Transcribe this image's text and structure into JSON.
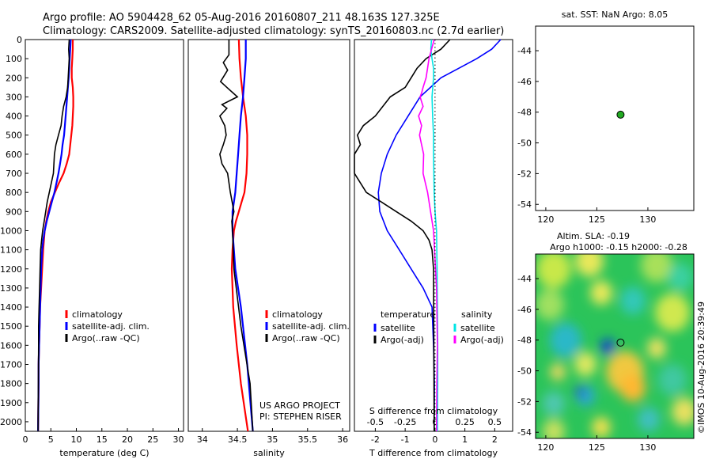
{
  "header": {
    "line1": "Argo profile: AO 5904428_62 05-Aug-2016 20160807_211 48.163S 127.325E",
    "line2": "Climatology: CARS2009. Satellite-adjusted climatology: synTS_20160803.nc (2.7d earlier)"
  },
  "colors": {
    "climatology": "#ff0000",
    "satellite": "#0000ff",
    "argo": "#000000",
    "salinity_sat": "#00e5e5",
    "salinity_argo": "#ff00ff",
    "float_marker": "#22aa22"
  },
  "chart_data": [
    {
      "type": "line",
      "panel": "temperature",
      "xlabel": "temperature (deg C)",
      "ylabel": "",
      "xlim": [
        0,
        31
      ],
      "ylim": [
        2050,
        0
      ],
      "xticks": [
        "0",
        "5",
        "10",
        "15",
        "20",
        "25",
        "30"
      ],
      "yticks": [
        "0",
        "100",
        "200",
        "300",
        "400",
        "500",
        "600",
        "700",
        "800",
        "900",
        "1000",
        "1100",
        "1200",
        "1300",
        "1400",
        "1500",
        "1600",
        "1700",
        "1800",
        "1900",
        "2000"
      ],
      "legend": [
        "climatology",
        "satellite-adj. clim.",
        "Argo(..raw -QC)"
      ],
      "legend_placement": "center",
      "series": [
        {
          "name": "climatology",
          "color": "red",
          "x": [
            9.3,
            9.3,
            9.2,
            9.1,
            9.1,
            9.3,
            9.4,
            9.4,
            9.3,
            9.2,
            9.0,
            8.8,
            8.6,
            8.1,
            7.5,
            6.6,
            5.8,
            5.0,
            4.5,
            4.1,
            3.8,
            3.5,
            3.3,
            3.1,
            2.9,
            2.8,
            2.7,
            2.6,
            2.6,
            2.5
          ],
          "y": [
            0,
            50,
            100,
            150,
            200,
            250,
            300,
            350,
            400,
            450,
            500,
            550,
            600,
            650,
            700,
            750,
            800,
            850,
            900,
            950,
            1000,
            1100,
            1200,
            1300,
            1400,
            1500,
            1600,
            1700,
            1800,
            2050
          ]
        },
        {
          "name": "satellite-adj. clim.",
          "color": "blue",
          "x": [
            8.9,
            8.8,
            8.7,
            8.6,
            8.5,
            8.2,
            7.9,
            7.6,
            7.3,
            7.1,
            6.8,
            6.5,
            6.1,
            5.7,
            5.2,
            4.7,
            4.2,
            3.8,
            3.5,
            3.3,
            3.1,
            3.0,
            2.9,
            2.8,
            2.7,
            2.6,
            2.6,
            2.5
          ],
          "y": [
            0,
            50,
            100,
            150,
            200,
            300,
            400,
            500,
            550,
            600,
            650,
            700,
            750,
            800,
            850,
            900,
            950,
            1000,
            1050,
            1100,
            1200,
            1300,
            1400,
            1500,
            1600,
            1700,
            1800,
            2050
          ]
        },
        {
          "name": "Argo(..raw -QC)",
          "color": "black",
          "x": [
            8.6,
            8.5,
            8.6,
            8.4,
            8.3,
            8.0,
            7.5,
            7.2,
            7.0,
            6.5,
            6.0,
            5.7,
            5.5,
            5.1,
            4.7,
            4.3,
            4.0,
            3.7,
            3.4,
            3.2,
            3.0,
            2.9,
            2.8,
            2.7,
            2.6,
            2.6,
            2.5
          ],
          "y": [
            0,
            50,
            100,
            200,
            250,
            300,
            350,
            400,
            450,
            500,
            550,
            600,
            700,
            750,
            800,
            850,
            900,
            950,
            1000,
            1050,
            1100,
            1200,
            1300,
            1400,
            1500,
            1600,
            2050
          ]
        }
      ]
    },
    {
      "type": "line",
      "panel": "salinity",
      "xlabel": "salinity",
      "ylabel": "",
      "xlim": [
        33.8,
        36.1
      ],
      "ylim": [
        2050,
        0
      ],
      "xticks": [
        "34",
        "34.5",
        "35",
        "35.5",
        "36"
      ],
      "legend": [
        "climatology",
        "satellite-adj. clim.",
        "Argo(..raw -QC)"
      ],
      "legend_placement": "bottom-right",
      "annotations": [
        "US ARGO PROJECT",
        "PI: STEPHEN RISER"
      ],
      "series": [
        {
          "name": "climatology",
          "color": "red",
          "x": [
            34.52,
            34.53,
            34.55,
            34.58,
            34.62,
            34.64,
            34.64,
            34.63,
            34.6,
            34.56,
            34.52,
            34.48,
            34.45,
            34.43,
            34.42,
            34.44,
            34.49,
            34.55,
            34.65
          ],
          "y": [
            0,
            100,
            200,
            300,
            400,
            500,
            600,
            700,
            800,
            850,
            900,
            950,
            1000,
            1100,
            1200,
            1400,
            1600,
            1800,
            2050
          ]
        },
        {
          "name": "satellite-adj. clim.",
          "color": "blue",
          "x": [
            34.62,
            34.62,
            34.6,
            34.58,
            34.55,
            34.53,
            34.51,
            34.49,
            34.47,
            34.45,
            34.43,
            34.43,
            34.47,
            34.55,
            34.64,
            34.72
          ],
          "y": [
            0,
            100,
            200,
            300,
            400,
            500,
            600,
            700,
            800,
            850,
            900,
            1000,
            1200,
            1400,
            1700,
            2050
          ]
        },
        {
          "name": "Argo(..raw -QC)",
          "color": "black",
          "x": [
            34.38,
            34.38,
            34.3,
            34.36,
            34.26,
            34.38,
            34.44,
            34.5,
            34.28,
            34.35,
            34.25,
            34.32,
            34.34,
            34.3,
            34.25,
            34.28,
            34.36,
            34.4,
            34.45,
            34.42,
            34.43,
            34.45,
            34.55,
            34.68,
            34.72
          ],
          "y": [
            0,
            80,
            120,
            160,
            220,
            260,
            280,
            300,
            340,
            360,
            400,
            450,
            500,
            550,
            600,
            650,
            700,
            800,
            900,
            950,
            1000,
            1200,
            1500,
            1800,
            2050
          ]
        }
      ]
    },
    {
      "type": "line",
      "panel": "difference",
      "xlabel": "T difference from climatology",
      "ylabel": "",
      "xlim": [
        -2.7,
        2.6
      ],
      "ylim": [
        2050,
        0
      ],
      "xticks": [
        "-2",
        "-1",
        "0",
        "1",
        "2"
      ],
      "secondary_xlabel": "S difference from climatology",
      "secondary_xticks": [
        "-0.5",
        "-0.25",
        "0",
        "0.25",
        "0.5"
      ],
      "legend": [
        "temperature",
        "satellite",
        "Argo(-adj)",
        "salinity",
        "satellite",
        "Argo(-adj)"
      ],
      "legend_placement": "bottom",
      "series": [
        {
          "name": "temperature satellite",
          "color": "blue",
          "x": [
            2.2,
            1.9,
            1.4,
            0.8,
            0.2,
            -0.5,
            -0.9,
            -1.3,
            -1.6,
            -1.8,
            -1.9,
            -1.85,
            -1.6,
            -1.2,
            -0.8,
            -0.4,
            -0.1,
            -0.05,
            -0.02,
            -0.03
          ],
          "y": [
            0,
            50,
            100,
            150,
            200,
            300,
            400,
            500,
            600,
            700,
            800,
            900,
            1000,
            1100,
            1200,
            1300,
            1400,
            1600,
            1800,
            2050
          ]
        },
        {
          "name": "temperature Argo(-adj)",
          "color": "black",
          "x": [
            0.5,
            0.2,
            -0.3,
            -0.6,
            -0.8,
            -1.0,
            -1.5,
            -2.0,
            -2.4,
            -2.6,
            -2.5,
            -2.7,
            -2.7,
            -2.3,
            -1.8,
            -1.3,
            -0.8,
            -0.4,
            -0.2,
            -0.1,
            -0.05,
            -0.03
          ],
          "y": [
            0,
            50,
            100,
            150,
            200,
            250,
            300,
            400,
            450,
            500,
            550,
            600,
            700,
            800,
            850,
            900,
            950,
            1000,
            1050,
            1100,
            1200,
            2050
          ]
        },
        {
          "name": "salinity satellite",
          "color": "cyan",
          "x": [
            -0.12,
            -0.14,
            -0.1,
            -0.05,
            -0.05,
            -0.1,
            -0.08,
            -0.05,
            -0.05,
            -0.04,
            -0.03,
            0.0,
            0.05,
            0.07,
            0.08,
            0.09,
            0.09,
            0.08
          ],
          "y": [
            0,
            50,
            100,
            150,
            200,
            300,
            400,
            500,
            600,
            700,
            800,
            900,
            1000,
            1200,
            1400,
            1600,
            1800,
            2050
          ]
        },
        {
          "name": "salinity Argo(-adj)",
          "color": "magenta",
          "x": [
            -0.03,
            -0.2,
            -0.3,
            -0.4,
            -0.45,
            -0.5,
            -0.4,
            -0.55,
            -0.45,
            -0.52,
            -0.38,
            -0.4,
            -0.25,
            -0.05,
            0.05,
            0.08,
            0.06,
            0.05
          ],
          "y": [
            0,
            100,
            200,
            250,
            280,
            300,
            350,
            400,
            450,
            500,
            600,
            700,
            800,
            1000,
            1300,
            1600,
            1800,
            2050
          ]
        }
      ]
    },
    {
      "type": "scatter",
      "panel": "sst-map",
      "title": "sat. SST: NaN Argo: 8.05",
      "xlim": [
        119,
        134.5
      ],
      "ylim": [
        -54.4,
        -42.4
      ],
      "xticks": [
        "120",
        "125",
        "130"
      ],
      "yticks": [
        "-44",
        "-46",
        "-48",
        "-50",
        "-52",
        "-54"
      ],
      "points": [
        {
          "x": 127.325,
          "y": -48.163
        }
      ]
    },
    {
      "type": "heatmap",
      "panel": "sla-map",
      "title": "Altim. SLA: -0.19",
      "subtitle": "Argo h1000: -0.15 h2000: -0.28",
      "xlim": [
        119,
        134.5
      ],
      "ylim": [
        -54.4,
        -42.4
      ],
      "xticks": [
        "120",
        "125",
        "130"
      ],
      "yticks": [
        "-44",
        "-46",
        "-48",
        "-50",
        "-52",
        "-54"
      ],
      "points": [
        {
          "x": 127.325,
          "y": -48.163
        }
      ],
      "side_label": "©IMOS 10-Aug-2016 20:39:49"
    }
  ]
}
